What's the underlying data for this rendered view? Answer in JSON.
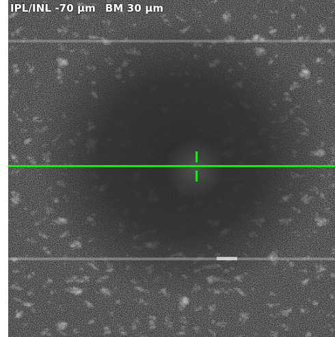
{
  "image": {
    "layer_label": "IPL/INL -70 µm",
    "offset_label": "BM 30 µm"
  },
  "colors": {
    "marker_green": "#1ee61e",
    "background_gray": "#2e2e2e"
  }
}
